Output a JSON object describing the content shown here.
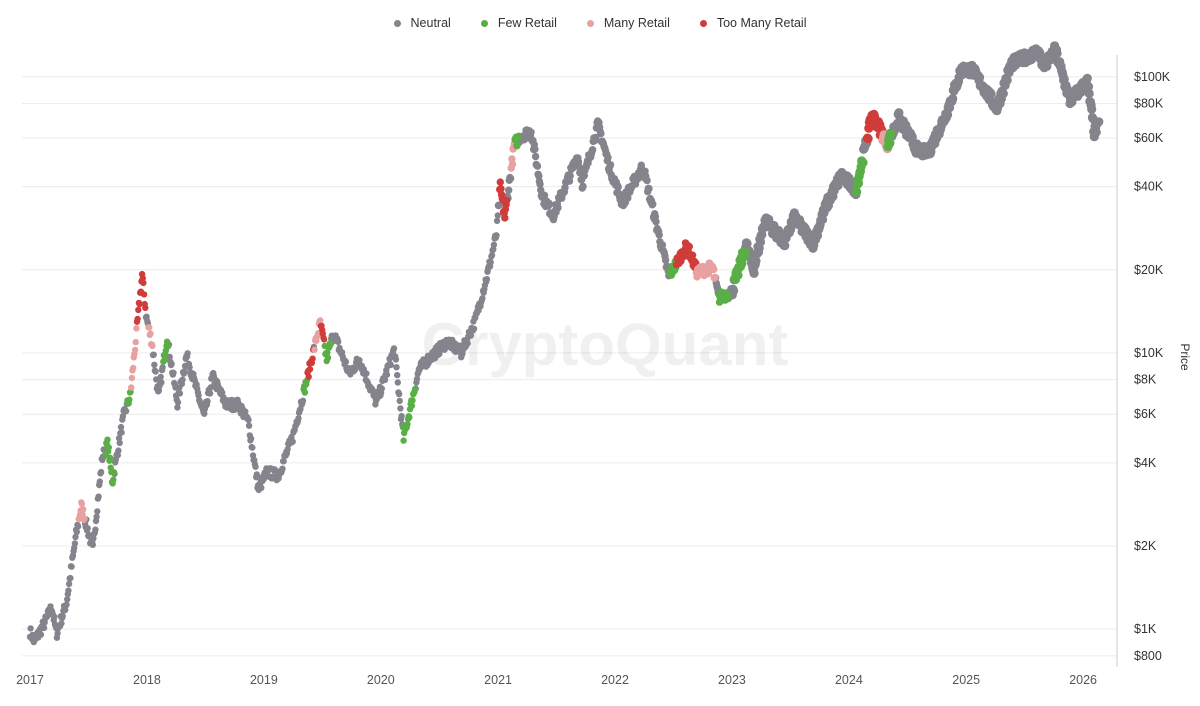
{
  "chart_data": {
    "type": "scatter",
    "ylabel": "Price",
    "y_scale": "log",
    "y_ticks": [
      {
        "value": 800,
        "label": "$800"
      },
      {
        "value": 1000,
        "label": "$1K"
      },
      {
        "value": 2000,
        "label": "$2K"
      },
      {
        "value": 4000,
        "label": "$4K"
      },
      {
        "value": 6000,
        "label": "$6K"
      },
      {
        "value": 8000,
        "label": "$8K"
      },
      {
        "value": 10000,
        "label": "$10K"
      },
      {
        "value": 20000,
        "label": "$20K"
      },
      {
        "value": 40000,
        "label": "$40K"
      },
      {
        "value": 60000,
        "label": "$60K"
      },
      {
        "value": 80000,
        "label": "$80K"
      },
      {
        "value": 100000,
        "label": "$100K"
      }
    ],
    "x_ticks": [
      "2017",
      "2018",
      "2019",
      "2020",
      "2021",
      "2022",
      "2023",
      "2024",
      "2025",
      "2026"
    ],
    "xlim": [
      "2017-01-01",
      "2026-03-01"
    ],
    "ylim": [
      760,
      125000
    ],
    "legend_position": "top-center",
    "watermark": "CryptoQuant",
    "series": [
      {
        "name": "Neutral",
        "color": "#85848d"
      },
      {
        "name": "Few Retail",
        "color": "#5aae46"
      },
      {
        "name": "Many Retail",
        "color": "#e8a0a0"
      },
      {
        "name": "Too Many Retail",
        "color": "#cf3c3a"
      }
    ],
    "price_path": [
      [
        "2017-01-01",
        980
      ],
      [
        "2017-01-15",
        900
      ],
      [
        "2017-02-15",
        1050
      ],
      [
        "2017-03-10",
        1200
      ],
      [
        "2017-03-25",
        960
      ],
      [
        "2017-04-25",
        1250
      ],
      [
        "2017-05-25",
        2200
      ],
      [
        "2017-06-10",
        2800
      ],
      [
        "2017-07-16",
        1950
      ],
      [
        "2017-08-15",
        4200
      ],
      [
        "2017-09-01",
        4700
      ],
      [
        "2017-09-15",
        3400
      ],
      [
        "2017-10-20",
        5900
      ],
      [
        "2017-11-10",
        7000
      ],
      [
        "2017-12-17",
        19200
      ],
      [
        "2017-12-30",
        13500
      ],
      [
        "2018-01-17",
        10800
      ],
      [
        "2018-02-06",
        6900
      ],
      [
        "2018-03-05",
        11400
      ],
      [
        "2018-04-06",
        6600
      ],
      [
        "2018-05-05",
        9800
      ],
      [
        "2018-06-29",
        5900
      ],
      [
        "2018-07-25",
        8200
      ],
      [
        "2018-09-05",
        6500
      ],
      [
        "2018-10-15",
        6500
      ],
      [
        "2018-11-14",
        5600
      ],
      [
        "2018-12-15",
        3200
      ],
      [
        "2019-01-10",
        3700
      ],
      [
        "2019-02-15",
        3600
      ],
      [
        "2019-04-02",
        5000
      ],
      [
        "2019-05-15",
        8000
      ],
      [
        "2019-06-26",
        12900
      ],
      [
        "2019-07-16",
        9500
      ],
      [
        "2019-08-06",
        11800
      ],
      [
        "2019-09-25",
        8400
      ],
      [
        "2019-10-26",
        9500
      ],
      [
        "2019-12-18",
        6600
      ],
      [
        "2020-02-12",
        10300
      ],
      [
        "2020-03-12",
        4900
      ],
      [
        "2020-04-29",
        8700
      ],
      [
        "2020-06-01",
        9600
      ],
      [
        "2020-07-28",
        11000
      ],
      [
        "2020-09-08",
        10000
      ],
      [
        "2020-10-21",
        13000
      ],
      [
        "2020-11-30",
        19500
      ],
      [
        "2020-12-27",
        27000
      ],
      [
        "2021-01-08",
        40000
      ],
      [
        "2021-01-22",
        31000
      ],
      [
        "2021-02-21",
        57000
      ],
      [
        "2021-03-13",
        61000
      ],
      [
        "2021-04-14",
        63500
      ],
      [
        "2021-05-19",
        37000
      ],
      [
        "2021-06-22",
        31500
      ],
      [
        "2021-07-29",
        40000
      ],
      [
        "2021-09-06",
        51500
      ],
      [
        "2021-09-21",
        41000
      ],
      [
        "2021-11-09",
        67500
      ],
      [
        "2021-12-15",
        47000
      ],
      [
        "2022-01-24",
        35000
      ],
      [
        "2022-03-29",
        47500
      ],
      [
        "2022-05-12",
        28500
      ],
      [
        "2022-06-18",
        19000
      ],
      [
        "2022-08-14",
        24500
      ],
      [
        "2022-09-15",
        19500
      ],
      [
        "2022-11-01",
        20500
      ],
      [
        "2022-11-21",
        15800
      ],
      [
        "2022-12-31",
        16600
      ],
      [
        "2023-02-15",
        24500
      ],
      [
        "2023-03-10",
        20000
      ],
      [
        "2023-04-14",
        30500
      ],
      [
        "2023-06-15",
        25000
      ],
      [
        "2023-07-13",
        31000
      ],
      [
        "2023-09-11",
        25000
      ],
      [
        "2023-10-24",
        34500
      ],
      [
        "2023-12-08",
        44000
      ],
      [
        "2024-01-23",
        39000
      ],
      [
        "2024-03-14",
        73000
      ],
      [
        "2024-05-01",
        57000
      ],
      [
        "2024-06-05",
        71000
      ],
      [
        "2024-08-05",
        53500
      ],
      [
        "2024-09-06",
        53500
      ],
      [
        "2024-10-29",
        72500
      ],
      [
        "2024-12-17",
        106000
      ],
      [
        "2025-01-20",
        106000
      ],
      [
        "2025-04-07",
        77000
      ],
      [
        "2025-05-22",
        111500
      ],
      [
        "2025-08-14",
        123500
      ],
      [
        "2025-09-01",
        108000
      ],
      [
        "2025-10-06",
        125000
      ],
      [
        "2025-11-21",
        82000
      ],
      [
        "2026-01-14",
        96000
      ],
      [
        "2026-02-05",
        63000
      ],
      [
        "2026-02-20",
        67000
      ]
    ],
    "regimes": [
      {
        "series": "Few Retail",
        "from": "2017-08-25",
        "to": "2017-09-20"
      },
      {
        "series": "Many Retail",
        "from": "2017-06-01",
        "to": "2017-06-20"
      },
      {
        "series": "Too Many Retail",
        "from": "2017-06-05",
        "to": "2017-06-18"
      },
      {
        "series": "Few Retail",
        "from": "2017-11-01",
        "to": "2017-11-12"
      },
      {
        "series": "Many Retail",
        "from": "2017-11-12",
        "to": "2017-11-30"
      },
      {
        "series": "Too Many Retail",
        "from": "2017-12-01",
        "to": "2017-12-28"
      },
      {
        "series": "Many Retail",
        "from": "2018-01-05",
        "to": "2018-01-18"
      },
      {
        "series": "Few Retail",
        "from": "2018-02-20",
        "to": "2018-03-08"
      },
      {
        "series": "Few Retail",
        "from": "2019-05-05",
        "to": "2019-05-15"
      },
      {
        "series": "Too Many Retail",
        "from": "2019-05-15",
        "to": "2019-06-05"
      },
      {
        "series": "Many Retail",
        "from": "2019-06-08",
        "to": "2019-06-26"
      },
      {
        "series": "Too Many Retail",
        "from": "2019-06-26",
        "to": "2019-07-08"
      },
      {
        "series": "Few Retail",
        "from": "2019-07-10",
        "to": "2019-07-28"
      },
      {
        "series": "Few Retail",
        "from": "2020-03-10",
        "to": "2020-04-18"
      },
      {
        "series": "Too Many Retail",
        "from": "2021-01-06",
        "to": "2021-01-28"
      },
      {
        "series": "Many Retail",
        "from": "2021-02-10",
        "to": "2021-02-22"
      },
      {
        "series": "Few Retail",
        "from": "2021-02-22",
        "to": "2021-03-04"
      },
      {
        "series": "Few Retail",
        "from": "2022-06-22",
        "to": "2022-07-10"
      },
      {
        "series": "Too Many Retail",
        "from": "2022-07-10",
        "to": "2022-09-10"
      },
      {
        "series": "Many Retail",
        "from": "2022-09-10",
        "to": "2022-11-10"
      },
      {
        "series": "Few Retail",
        "from": "2022-11-20",
        "to": "2022-12-20"
      },
      {
        "series": "Few Retail",
        "from": "2023-01-10",
        "to": "2023-02-12"
      },
      {
        "series": "Few Retail",
        "from": "2024-01-25",
        "to": "2024-02-15"
      },
      {
        "series": "Too Many Retail",
        "from": "2024-02-28",
        "to": "2024-04-15"
      },
      {
        "series": "Many Retail",
        "from": "2024-04-15",
        "to": "2024-04-30"
      },
      {
        "series": "Few Retail",
        "from": "2024-04-30",
        "to": "2024-05-10"
      }
    ]
  }
}
